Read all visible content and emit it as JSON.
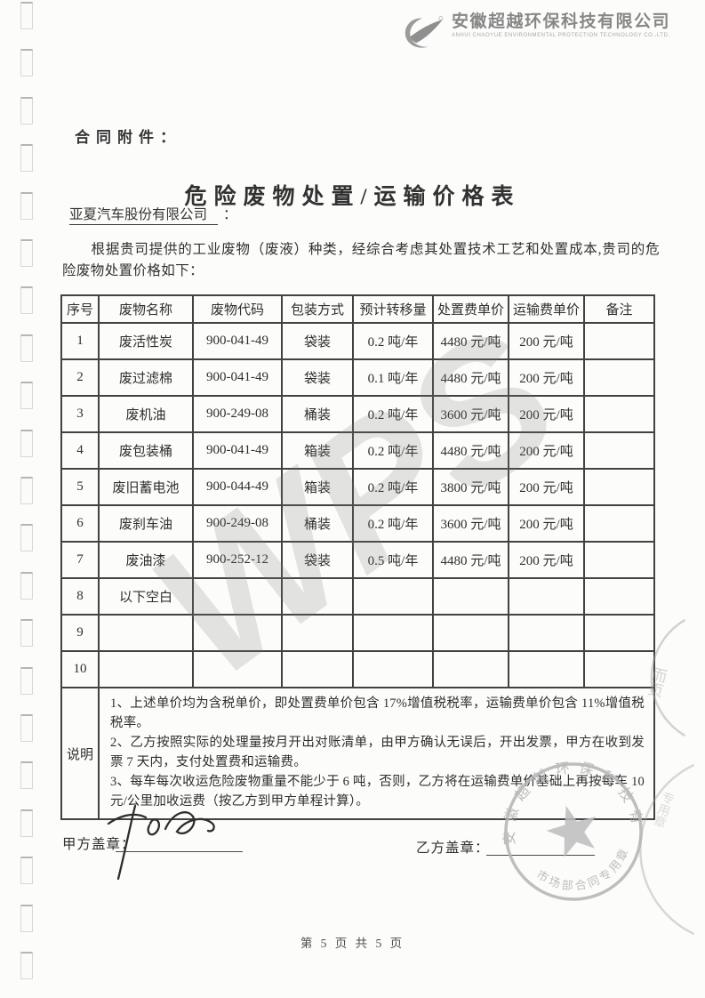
{
  "header": {
    "company_cn": "安徽超越环保科技有限公司",
    "company_en": "ANHUI CHAOYUE ENVIRONMENTAL PROTECTION TECHNOLOGY CO.,LTD."
  },
  "attachment_label": "合同附件：",
  "title": "危险废物处置/运输价格表",
  "recipient": "亚夏汽车股份有限公司",
  "recipient_colon": "：",
  "intro": "根据贵司提供的工业废物（废液）种类，经综合考虑其处置技术工艺和处置成本,贵司的危险废物处置价格如下：",
  "table": {
    "headers": [
      "序号",
      "废物名称",
      "废物代码",
      "包装方式",
      "预计转移量",
      "处置费单价",
      "运输费单价",
      "备注"
    ],
    "rows": [
      [
        "1",
        "废活性炭",
        "900-041-49",
        "袋装",
        "0.2 吨/年",
        "4480 元/吨",
        "200 元/吨",
        ""
      ],
      [
        "2",
        "废过滤棉",
        "900-041-49",
        "袋装",
        "0.1 吨/年",
        "4480 元/吨",
        "200 元/吨",
        ""
      ],
      [
        "3",
        "废机油",
        "900-249-08",
        "桶装",
        "0.2 吨/年",
        "3600 元/吨",
        "200 元/吨",
        ""
      ],
      [
        "4",
        "废包装桶",
        "900-041-49",
        "箱装",
        "0.2 吨/年",
        "4480 元/吨",
        "200 元/吨",
        ""
      ],
      [
        "5",
        "废旧蓄电池",
        "900-044-49",
        "箱装",
        "0.2 吨/年",
        "3800 元/吨",
        "200 元/吨",
        ""
      ],
      [
        "6",
        "废刹车油",
        "900-249-08",
        "桶装",
        "0.2 吨/年",
        "3600 元/吨",
        "200 元/吨",
        ""
      ],
      [
        "7",
        "废油漆",
        "900-252-12",
        "袋装",
        "0.5 吨/年",
        "4480 元/吨",
        "200 元/吨",
        ""
      ],
      [
        "8",
        "以下空白",
        "",
        "",
        "",
        "",
        "",
        ""
      ],
      [
        "9",
        "",
        "",
        "",
        "",
        "",
        "",
        ""
      ],
      [
        "10",
        "",
        "",
        "",
        "",
        "",
        "",
        ""
      ]
    ],
    "notes_label": "说明",
    "notes": [
      "1、上述单价均为含税单价，即处置费单价包含 17%增值税税率，运输费单价包含 11%增值税税率。",
      "2、乙方按照实际的处理量按月开出对账清单，由甲方确认无误后，开出发票，甲方在收到发票 7 天内，支付处置费和运输费。",
      "3、每车每次收运危险废物重量不能少于 6 吨，否则，乙方将在运输费单价基础上再按每车 10 元/公里加收运费（按乙方到甲方单程计算）。"
    ]
  },
  "signatures": {
    "party_a_label": "甲方盖章：",
    "party_b_label": "乙方盖章："
  },
  "stamp": {
    "company": "安徽超越环保科技有限公司",
    "department": "市场部合同专用章",
    "color": "#b3b3b3"
  },
  "watermark": "WPS",
  "footer_page": "第 5 页 共 5 页",
  "colors": {
    "paper": "#fcfcfb",
    "ink": "#2f2f2f",
    "table_border": "#424242",
    "logo_gray": "#878787",
    "stamp_gray": "#b3b3b3"
  }
}
